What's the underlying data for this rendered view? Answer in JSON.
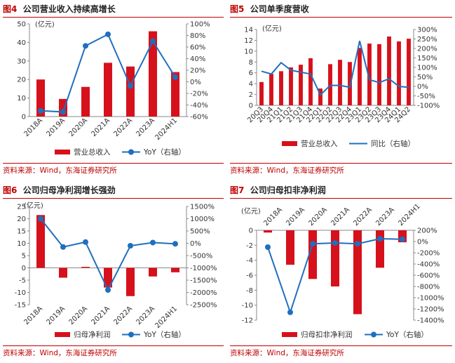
{
  "source_text": "资料来源：Wind，东海证券研究所",
  "colors": {
    "bar": "#d6111b",
    "line": "#1f6fbf",
    "accent": "#c00000"
  },
  "chart_data": [
    {
      "id": "fig4",
      "type": "bar",
      "title_num": "图4",
      "title_text": "公司营业收入持续高增长",
      "unit_label": "(亿元)",
      "categories": [
        "2018A",
        "2019A",
        "2020A",
        "2021A",
        "2022A",
        "2023A",
        "2024H1"
      ],
      "bar_name": "营业总收入",
      "bar_values": [
        20,
        9.5,
        16,
        29,
        27,
        46,
        24
      ],
      "line_name": "YoY（右轴）",
      "line_values": [
        -50,
        -52,
        62,
        82,
        -7,
        70,
        8
      ],
      "line_marker": true,
      "ylim": [
        0,
        50
      ],
      "yticks": [
        0,
        10,
        20,
        30,
        40,
        50
      ],
      "y2lim": [
        -60,
        100
      ],
      "y2ticks": [
        -60,
        -40,
        -20,
        0,
        20,
        40,
        60,
        80,
        100
      ],
      "ytick_labels": [
        "0",
        "10",
        "20",
        "30",
        "40",
        "50"
      ],
      "y2tick_labels": [
        "-60%",
        "-40%",
        "-20%",
        "0%",
        "20%",
        "40%",
        "60%",
        "80%",
        "100%"
      ]
    },
    {
      "id": "fig5",
      "type": "bar",
      "title_num": "图5",
      "title_text": "公司单季度营收",
      "unit_label": "(亿元)",
      "categories": [
        "20Q3",
        "20Q4",
        "21Q1",
        "21Q2",
        "21Q3",
        "21Q4",
        "22Q1",
        "22Q2",
        "22Q3",
        "22Q4",
        "23Q1",
        "23Q2",
        "23Q3",
        "23Q4",
        "24Q1",
        "24Q2"
      ],
      "bar_name": "营业总收入",
      "bar_values": [
        4.3,
        5.8,
        6.3,
        7.0,
        7.5,
        8.7,
        3.1,
        7.6,
        8.4,
        8.0,
        10.6,
        11.4,
        11.3,
        12.7,
        11.8,
        12.3
      ],
      "line_name": "同比（右轴）",
      "line_values": [
        80,
        65,
        125,
        85,
        75,
        65,
        -45,
        5,
        5,
        -5,
        240,
        35,
        20,
        40,
        0,
        -5
      ],
      "line_marker": false,
      "ylim": [
        0,
        14
      ],
      "yticks": [
        0,
        2,
        4,
        6,
        8,
        10,
        12,
        14
      ],
      "y2lim": [
        -100,
        300
      ],
      "y2ticks": [
        -100,
        -50,
        0,
        50,
        100,
        150,
        200,
        250,
        300
      ],
      "ytick_labels": [
        "0",
        "2",
        "4",
        "6",
        "8",
        "10",
        "12",
        "14"
      ],
      "y2tick_labels": [
        "-100%",
        "-50%",
        "0%",
        "50%",
        "100%",
        "150%",
        "200%",
        "250%",
        "300%"
      ]
    },
    {
      "id": "fig6",
      "type": "bar",
      "title_num": "图6",
      "title_text": "公司归母净利润增长强劲",
      "unit_label": "(亿元)",
      "categories": [
        "2018A",
        "2019A",
        "2020A",
        "2021A",
        "2022A",
        "2023A",
        "2024H1"
      ],
      "bar_name": "归母净利润",
      "bar_values": [
        21.5,
        -4,
        0.4,
        -8,
        -11.5,
        -3.5,
        -1.8
      ],
      "line_name": "YoY（右轴）",
      "line_values": [
        1000,
        -150,
        50,
        -1900,
        -100,
        30,
        -20
      ],
      "line_marker": true,
      "ylim": [
        -15,
        25
      ],
      "yticks": [
        -15,
        -10,
        -5,
        0,
        5,
        10,
        15,
        20,
        25
      ],
      "y2lim": [
        -2500,
        1500
      ],
      "y2ticks": [
        -2500,
        -2000,
        -1500,
        -1000,
        -500,
        0,
        500,
        1000,
        1500
      ],
      "ytick_labels": [
        "-15",
        "-10",
        "-5",
        "0",
        "5",
        "10",
        "15",
        "20",
        "25"
      ],
      "y2tick_labels": [
        "-2500%",
        "-2000%",
        "-1500%",
        "-1000%",
        "-500%",
        "0%",
        "500%",
        "1000%",
        "1500%"
      ]
    },
    {
      "id": "fig7",
      "type": "bar",
      "title_num": "图7",
      "title_text": "公司归母扣非净利润",
      "unit_label": "(亿元)",
      "categories": [
        "2018A",
        "2019A",
        "2020A",
        "2021A",
        "2022A",
        "2023A",
        "2024H1"
      ],
      "bar_name": "归母扣非净利润",
      "bar_values": [
        -0.3,
        -4.6,
        -6.5,
        -7.5,
        -11.2,
        -5.0,
        -1.6
      ],
      "line_name": "YoY（右轴）",
      "line_values": [
        -100,
        -1260,
        -40,
        -25,
        -40,
        50,
        40
      ],
      "line_marker": true,
      "ylim": [
        -12,
        0
      ],
      "yticks": [
        -12,
        -10,
        -8,
        -6,
        -4,
        -2,
        0
      ],
      "y2lim": [
        -1400,
        200
      ],
      "y2ticks": [
        -1400,
        -1200,
        -1000,
        -800,
        -600,
        -400,
        -200,
        0,
        200
      ],
      "ytick_labels": [
        "-12",
        "-10",
        "-8",
        "-6",
        "-4",
        "-2",
        "0"
      ],
      "y2tick_labels": [
        "-1400%",
        "-1200%",
        "-1000%",
        "-800%",
        "-600%",
        "-400%",
        "-200%",
        "0%",
        "200%"
      ]
    }
  ]
}
